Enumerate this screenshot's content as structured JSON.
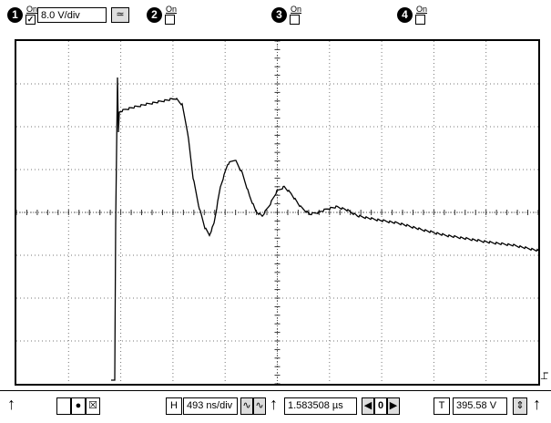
{
  "channels": [
    {
      "number": "1",
      "on_label": "On",
      "checked": "✓",
      "vdiv": "8.0 V/div",
      "coupling_icon": "≃"
    },
    {
      "number": "2",
      "on_label": "On",
      "checked": ""
    },
    {
      "number": "3",
      "on_label": "On",
      "checked": ""
    },
    {
      "number": "4",
      "on_label": "On",
      "checked": ""
    }
  ],
  "timebase": {
    "label": "H",
    "value": "493 ns/div",
    "position": "1.583508 µs",
    "step_value": "0"
  },
  "trigger": {
    "label": "T",
    "level": "395.58 V"
  },
  "icons": {
    "left-arrow": "arrow-up-icon",
    "trigger-marker": "trigger-marker-icon"
  },
  "colors": {
    "trace": "#000000",
    "grid": "#666666",
    "background": "#ffffff"
  }
}
